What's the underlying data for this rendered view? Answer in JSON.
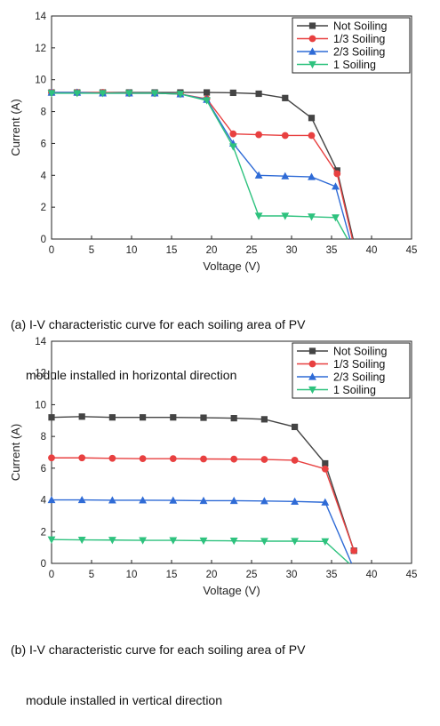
{
  "legend_colors": {
    "not_soiling": "#444444",
    "one_third": "#e84040",
    "two_thirds": "#2f6bd6",
    "full": "#2ec27e"
  },
  "captions": {
    "a_line1": "(a) I-V characteristic curve for each soiling area of PV",
    "a_line2": "module installed in horizontal direction",
    "b_line1": "(b) I-V characteristic curve for each soiling area of PV",
    "b_line2": "module installed in vertical direction"
  },
  "chart_data": [
    {
      "type": "line",
      "xlabel": "Voltage (V)",
      "ylabel": "Current (A)",
      "xlim": [
        0,
        45
      ],
      "ylim": [
        0,
        14
      ],
      "xticks": [
        "0",
        "5",
        "10",
        "15",
        "20",
        "25",
        "30",
        "35",
        "40",
        "45"
      ],
      "yticks": [
        "0",
        "2",
        "4",
        "6",
        "8",
        "10",
        "12",
        "14"
      ],
      "legend_position": "top-right",
      "series": [
        {
          "name": "Not Soiling",
          "marker": "square",
          "color": "#444444",
          "x": [
            0,
            3.2,
            6.4,
            9.7,
            12.9,
            16.1,
            19.4,
            22.7,
            25.9,
            29.2,
            32.5,
            35.7,
            37.7
          ],
          "y": [
            9.2,
            9.2,
            9.2,
            9.2,
            9.2,
            9.2,
            9.2,
            9.18,
            9.12,
            8.85,
            7.6,
            4.3,
            0
          ]
        },
        {
          "name": "1/3 Soiling",
          "marker": "circle",
          "color": "#e84040",
          "x": [
            0,
            3.2,
            6.4,
            9.7,
            12.9,
            16.1,
            19.4,
            22.7,
            25.9,
            29.2,
            32.5,
            35.7,
            37.6
          ],
          "y": [
            9.2,
            9.2,
            9.2,
            9.15,
            9.15,
            9.1,
            8.8,
            6.6,
            6.55,
            6.5,
            6.5,
            4.1,
            0
          ]
        },
        {
          "name": "2/3 Soiling",
          "marker": "triangle-up",
          "color": "#2f6bd6",
          "x": [
            0,
            3.2,
            6.4,
            9.7,
            12.9,
            16.1,
            19.4,
            22.7,
            25.9,
            29.2,
            32.5,
            35.5,
            37.3
          ],
          "y": [
            9.2,
            9.2,
            9.15,
            9.15,
            9.15,
            9.1,
            8.75,
            6.0,
            4.0,
            3.95,
            3.9,
            3.3,
            0
          ]
        },
        {
          "name": "1 Soiling",
          "marker": "triangle-down",
          "color": "#2ec27e",
          "x": [
            0,
            3.2,
            6.4,
            9.7,
            12.9,
            16.1,
            19.4,
            22.7,
            25.9,
            29.2,
            32.5,
            35.5,
            37.0
          ],
          "y": [
            9.15,
            9.15,
            9.15,
            9.15,
            9.15,
            9.1,
            8.7,
            5.8,
            1.45,
            1.45,
            1.4,
            1.35,
            0
          ]
        }
      ]
    },
    {
      "type": "line",
      "xlabel": "Voltage (V)",
      "ylabel": "Current (A)",
      "xlim": [
        0,
        45
      ],
      "ylim": [
        0,
        14
      ],
      "xticks": [
        "0",
        "5",
        "10",
        "15",
        "20",
        "25",
        "30",
        "35",
        "40",
        "45"
      ],
      "yticks": [
        "0",
        "2",
        "4",
        "6",
        "8",
        "10",
        "12",
        "14"
      ],
      "legend_position": "top-right",
      "series": [
        {
          "name": "Not Soiling",
          "marker": "square",
          "color": "#444444",
          "x": [
            0,
            3.8,
            7.6,
            11.4,
            15.2,
            19.0,
            22.8,
            26.6,
            30.4,
            34.2,
            37.8
          ],
          "y": [
            9.2,
            9.25,
            9.2,
            9.2,
            9.2,
            9.18,
            9.15,
            9.08,
            8.6,
            6.3,
            0.8
          ]
        },
        {
          "name": "1/3 Soiling",
          "marker": "circle",
          "color": "#e84040",
          "x": [
            0,
            3.8,
            7.6,
            11.4,
            15.2,
            19.0,
            22.8,
            26.6,
            30.4,
            34.2,
            37.8
          ],
          "y": [
            6.65,
            6.65,
            6.62,
            6.6,
            6.6,
            6.58,
            6.57,
            6.55,
            6.5,
            5.95,
            0.8
          ]
        },
        {
          "name": "2/3 Soiling",
          "marker": "triangle-up",
          "color": "#2f6bd6",
          "x": [
            0,
            3.8,
            7.6,
            11.4,
            15.2,
            19.0,
            22.8,
            26.6,
            30.4,
            34.2,
            37.5
          ],
          "y": [
            4.0,
            4.0,
            3.98,
            3.98,
            3.97,
            3.95,
            3.95,
            3.93,
            3.9,
            3.85,
            0
          ]
        },
        {
          "name": "1 Soiling",
          "marker": "triangle-down",
          "color": "#2ec27e",
          "x": [
            0,
            3.8,
            7.6,
            11.4,
            15.2,
            19.0,
            22.8,
            26.6,
            30.4,
            34.2,
            37.2
          ],
          "y": [
            1.5,
            1.48,
            1.47,
            1.45,
            1.45,
            1.43,
            1.42,
            1.4,
            1.4,
            1.38,
            0
          ]
        }
      ]
    }
  ]
}
